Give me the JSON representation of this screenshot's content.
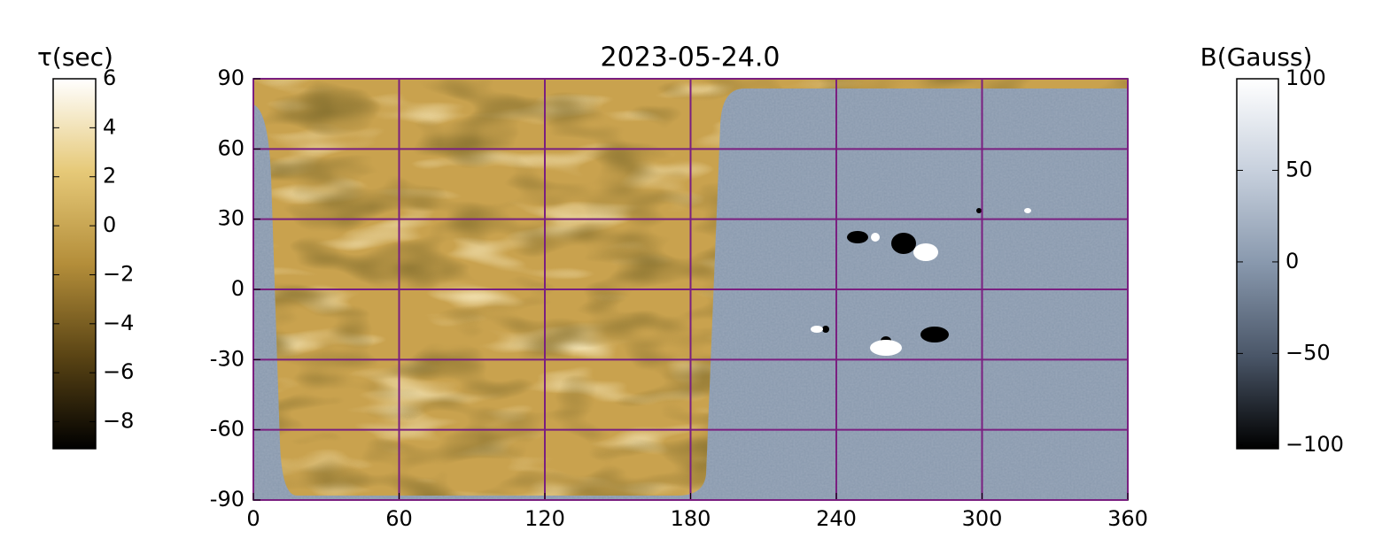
{
  "chart_data": {
    "type": "map",
    "title": "2023-05-24.0",
    "xlim": [
      0,
      360
    ],
    "xticks": [
      0,
      60,
      120,
      180,
      240,
      300,
      360
    ],
    "ylim": [
      -90,
      90
    ],
    "yticks": [
      -90,
      -60,
      -30,
      0,
      30,
      60,
      90
    ],
    "grid": true,
    "grid_color": "#7a1f80",
    "colorbars": [
      {
        "label": "τ(sec)",
        "lim": [
          -9.1,
          6
        ],
        "ticks": [
          6,
          4,
          2,
          0,
          {
            "value": -2,
            "label": "−2"
          },
          {
            "value": -4,
            "label": "−4"
          },
          {
            "value": -6,
            "label": "−6"
          },
          {
            "value": -8,
            "label": "−8"
          }
        ],
        "colors": [
          "#000000",
          "#5a4414",
          "#b48e3a",
          "#e6c978",
          "#ffffff"
        ]
      },
      {
        "label": "B(Gauss)",
        "lim": [
          -102,
          100
        ],
        "ticks": [
          100,
          50,
          0,
          {
            "value": -50,
            "label": "−50"
          },
          {
            "value": -100,
            "label": "−100"
          }
        ],
        "colors": [
          "#000000",
          "#4a5668",
          "#8898ad",
          "#c7d0dd",
          "#ffffff"
        ]
      }
    ]
  }
}
